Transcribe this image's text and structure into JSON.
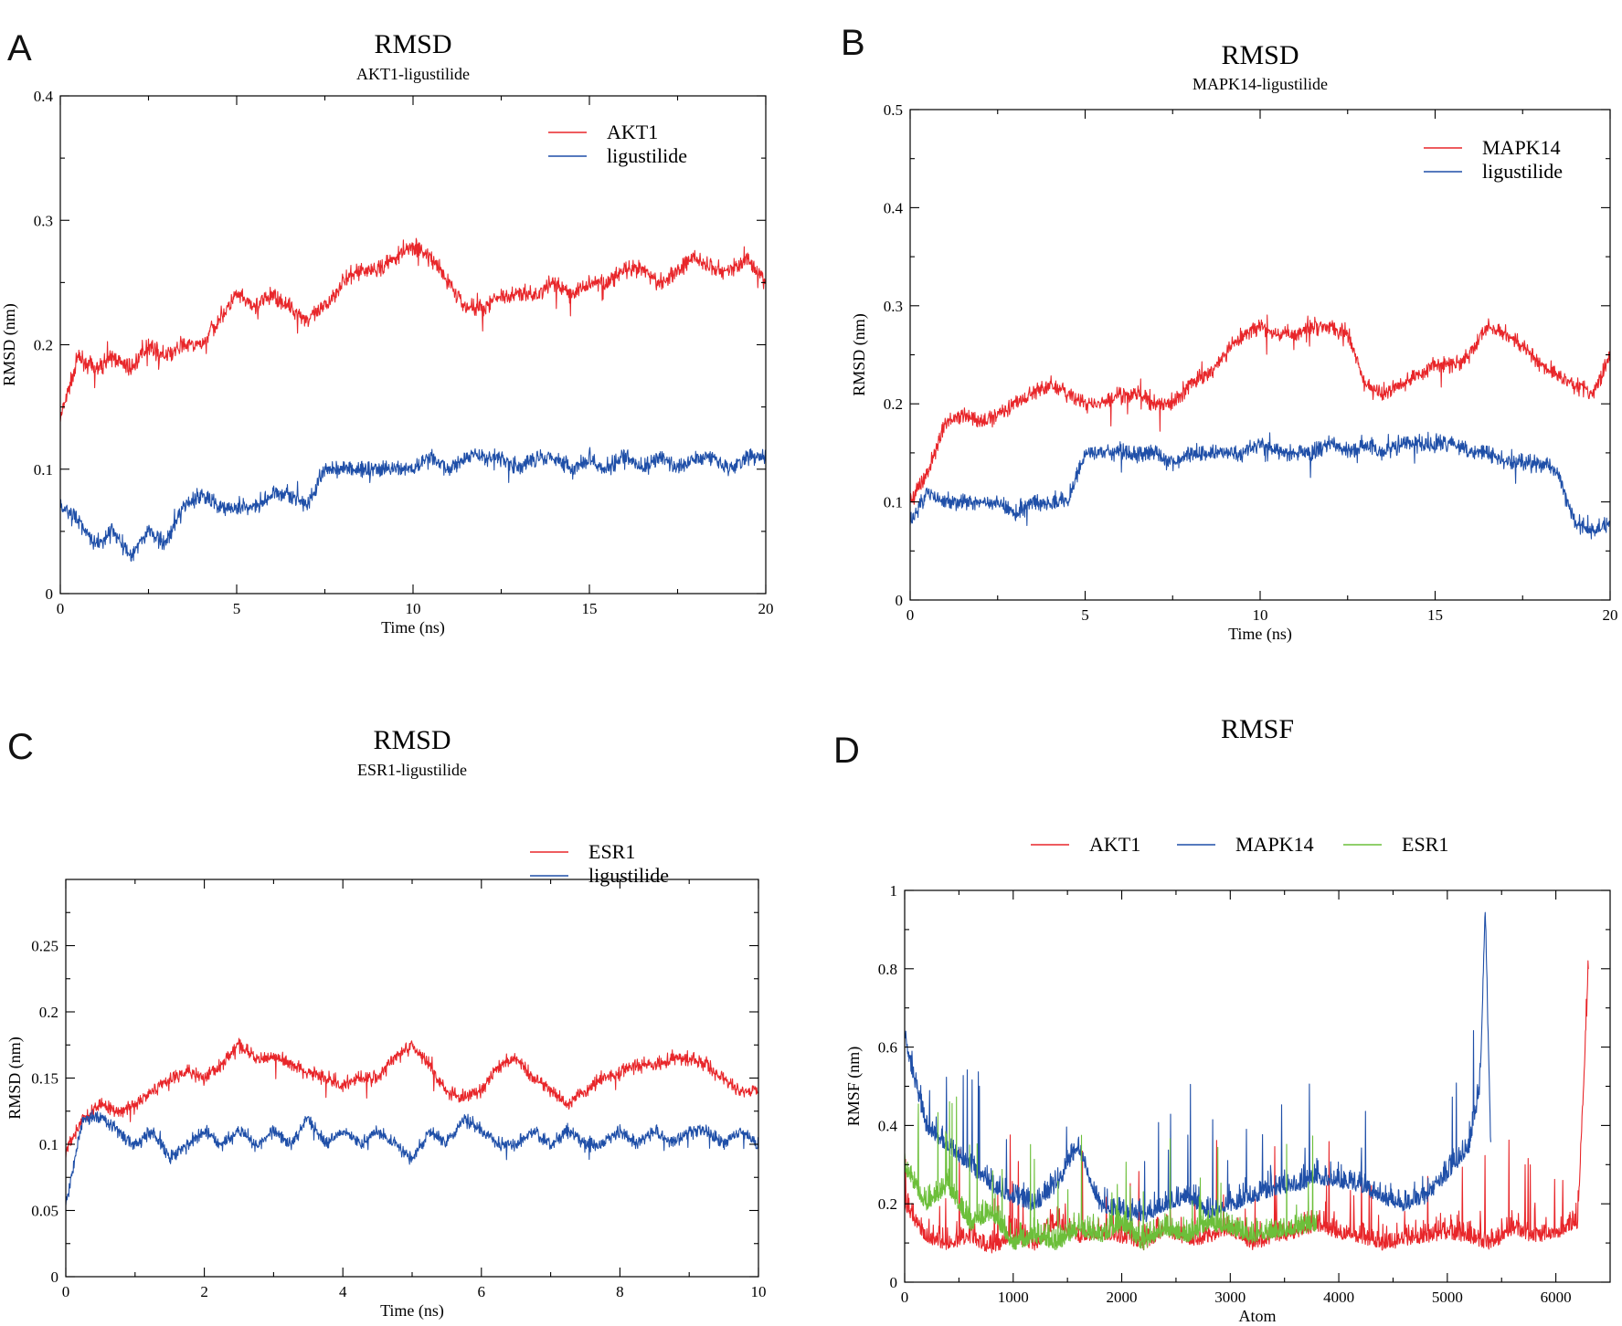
{
  "chart_data": [
    {
      "panel": "A",
      "type": "line",
      "title": "RMSD",
      "subtitle": "AKT1-ligustilide",
      "xlabel": "Time (ns)",
      "ylabel": "RMSD (nm)",
      "xlim": [
        0,
        20
      ],
      "ylim": [
        0,
        0.4
      ],
      "xticks": [
        0,
        5,
        10,
        15,
        20
      ],
      "yticks": [
        0,
        0.1,
        0.2,
        0.3,
        0.4
      ],
      "x_tick_labels": [
        "0",
        "5",
        "10",
        "15",
        "20"
      ],
      "y_tick_labels": [
        "0",
        "0.1",
        "0.2",
        "0.3",
        "0.4"
      ],
      "grid": false,
      "legend_position": "top-right",
      "series": [
        {
          "name": "AKT1",
          "color": "#e8262a",
          "x": [
            0,
            0.5,
            1,
            1.5,
            2,
            2.5,
            3,
            3.5,
            4,
            4.5,
            5,
            5.5,
            6,
            6.5,
            7,
            7.5,
            8,
            8.5,
            9,
            9.5,
            10,
            10.5,
            11,
            11.5,
            12,
            12.5,
            13,
            13.5,
            14,
            14.5,
            15,
            15.5,
            16,
            16.5,
            17,
            17.5,
            18,
            18.5,
            19,
            19.5,
            20
          ],
          "y": [
            0.14,
            0.19,
            0.18,
            0.19,
            0.18,
            0.2,
            0.19,
            0.2,
            0.2,
            0.22,
            0.24,
            0.23,
            0.24,
            0.23,
            0.22,
            0.23,
            0.25,
            0.26,
            0.26,
            0.27,
            0.28,
            0.27,
            0.25,
            0.23,
            0.23,
            0.24,
            0.24,
            0.24,
            0.25,
            0.24,
            0.25,
            0.25,
            0.26,
            0.26,
            0.25,
            0.26,
            0.27,
            0.26,
            0.26,
            0.27,
            0.25
          ]
        },
        {
          "name": "ligustilide",
          "color": "#1f4fa8",
          "x": [
            0,
            0.5,
            1,
            1.5,
            2,
            2.5,
            3,
            3.5,
            4,
            4.5,
            5,
            5.5,
            6,
            6.5,
            7,
            7.5,
            8,
            8.5,
            9,
            9.5,
            10,
            10.5,
            11,
            11.5,
            12,
            12.5,
            13,
            13.5,
            14,
            14.5,
            15,
            15.5,
            16,
            16.5,
            17,
            17.5,
            18,
            18.5,
            19,
            19.5,
            20
          ],
          "y": [
            0.07,
            0.06,
            0.04,
            0.05,
            0.03,
            0.05,
            0.04,
            0.07,
            0.08,
            0.07,
            0.07,
            0.07,
            0.08,
            0.08,
            0.07,
            0.1,
            0.1,
            0.1,
            0.1,
            0.1,
            0.1,
            0.11,
            0.1,
            0.11,
            0.11,
            0.11,
            0.1,
            0.11,
            0.11,
            0.1,
            0.11,
            0.1,
            0.11,
            0.1,
            0.11,
            0.1,
            0.11,
            0.11,
            0.1,
            0.11,
            0.11
          ]
        }
      ]
    },
    {
      "panel": "B",
      "type": "line",
      "title": "RMSD",
      "subtitle": "MAPK14-ligustilide",
      "xlabel": "Time (ns)",
      "ylabel": "RMSD (nm)",
      "xlim": [
        0,
        20
      ],
      "ylim": [
        0,
        0.5
      ],
      "xticks": [
        0,
        5,
        10,
        15,
        20
      ],
      "yticks": [
        0,
        0.1,
        0.2,
        0.3,
        0.4,
        0.5
      ],
      "x_tick_labels": [
        "0",
        "5",
        "10",
        "15",
        "20"
      ],
      "y_tick_labels": [
        "0",
        "0.1",
        "0.2",
        "0.3",
        "0.4",
        "0.5"
      ],
      "grid": false,
      "legend_position": "top-right",
      "series": [
        {
          "name": "MAPK14",
          "color": "#e8262a",
          "x": [
            0,
            0.5,
            1,
            1.5,
            2,
            2.5,
            3,
            3.5,
            4,
            4.5,
            5,
            5.5,
            6,
            6.5,
            7,
            7.5,
            8,
            8.5,
            9,
            9.5,
            10,
            10.5,
            11,
            11.5,
            12,
            12.5,
            13,
            13.5,
            14,
            14.5,
            15,
            15.5,
            16,
            16.5,
            17,
            17.5,
            18,
            18.5,
            19,
            19.5,
            20
          ],
          "y": [
            0.1,
            0.13,
            0.18,
            0.19,
            0.18,
            0.19,
            0.2,
            0.21,
            0.22,
            0.21,
            0.2,
            0.2,
            0.21,
            0.21,
            0.2,
            0.2,
            0.22,
            0.23,
            0.25,
            0.27,
            0.28,
            0.27,
            0.27,
            0.28,
            0.28,
            0.27,
            0.22,
            0.21,
            0.22,
            0.23,
            0.24,
            0.24,
            0.25,
            0.28,
            0.27,
            0.26,
            0.24,
            0.23,
            0.22,
            0.21,
            0.25
          ]
        },
        {
          "name": "ligustilide",
          "color": "#1f4fa8",
          "x": [
            0,
            0.5,
            1,
            1.5,
            2,
            2.5,
            3,
            3.5,
            4,
            4.5,
            5,
            5.5,
            6,
            6.5,
            7,
            7.5,
            8,
            8.5,
            9,
            9.5,
            10,
            10.5,
            11,
            11.5,
            12,
            12.5,
            13,
            13.5,
            14,
            14.5,
            15,
            15.5,
            16,
            16.5,
            17,
            17.5,
            18,
            18.5,
            19,
            19.5,
            20
          ],
          "y": [
            0.08,
            0.11,
            0.1,
            0.1,
            0.1,
            0.1,
            0.09,
            0.1,
            0.1,
            0.1,
            0.15,
            0.15,
            0.15,
            0.15,
            0.15,
            0.14,
            0.15,
            0.15,
            0.15,
            0.15,
            0.16,
            0.15,
            0.15,
            0.15,
            0.16,
            0.15,
            0.16,
            0.15,
            0.16,
            0.16,
            0.16,
            0.16,
            0.15,
            0.15,
            0.14,
            0.14,
            0.14,
            0.13,
            0.08,
            0.07,
            0.08
          ]
        }
      ]
    },
    {
      "panel": "C",
      "type": "line",
      "title": "RMSD",
      "subtitle": "ESR1-ligustilide",
      "xlabel": "Time (ns)",
      "ylabel": "RMSD (nm)",
      "xlim": [
        0,
        10
      ],
      "ylim": [
        0,
        0.3
      ],
      "xticks": [
        0,
        2,
        4,
        6,
        8,
        10
      ],
      "yticks": [
        0,
        0.05,
        0.1,
        0.15,
        0.2,
        0.25
      ],
      "x_tick_labels": [
        "0",
        "2",
        "4",
        "6",
        "8",
        "10"
      ],
      "y_tick_labels": [
        "0",
        "0.05",
        "0.1",
        "0.15",
        "0.2",
        "0.25"
      ],
      "grid": false,
      "legend_position": "top-right",
      "series": [
        {
          "name": "ESR1",
          "color": "#e8262a",
          "x": [
            0,
            0.25,
            0.5,
            0.75,
            1,
            1.25,
            1.5,
            1.75,
            2,
            2.25,
            2.5,
            2.75,
            3,
            3.25,
            3.5,
            3.75,
            4,
            4.25,
            4.5,
            4.75,
            5,
            5.25,
            5.5,
            5.75,
            6,
            6.25,
            6.5,
            6.75,
            7,
            7.25,
            7.5,
            7.75,
            8,
            8.25,
            8.5,
            8.75,
            9,
            9.25,
            9.5,
            9.75,
            10
          ],
          "y": [
            0.095,
            0.12,
            0.13,
            0.125,
            0.13,
            0.14,
            0.15,
            0.155,
            0.15,
            0.16,
            0.175,
            0.165,
            0.165,
            0.16,
            0.155,
            0.15,
            0.145,
            0.15,
            0.15,
            0.165,
            0.175,
            0.16,
            0.14,
            0.135,
            0.14,
            0.16,
            0.165,
            0.15,
            0.14,
            0.13,
            0.14,
            0.15,
            0.155,
            0.16,
            0.16,
            0.165,
            0.165,
            0.16,
            0.15,
            0.14,
            0.14
          ]
        },
        {
          "name": "ligustilide",
          "color": "#1f4fa8",
          "x": [
            0,
            0.25,
            0.5,
            0.75,
            1,
            1.25,
            1.5,
            1.75,
            2,
            2.25,
            2.5,
            2.75,
            3,
            3.25,
            3.5,
            3.75,
            4,
            4.25,
            4.5,
            4.75,
            5,
            5.25,
            5.5,
            5.75,
            6,
            6.25,
            6.5,
            6.75,
            7,
            7.25,
            7.5,
            7.75,
            8,
            8.25,
            8.5,
            8.75,
            9,
            9.25,
            9.5,
            9.75,
            10
          ],
          "y": [
            0.055,
            0.12,
            0.12,
            0.11,
            0.1,
            0.11,
            0.09,
            0.1,
            0.11,
            0.1,
            0.11,
            0.1,
            0.11,
            0.1,
            0.12,
            0.1,
            0.11,
            0.1,
            0.11,
            0.1,
            0.09,
            0.11,
            0.1,
            0.12,
            0.11,
            0.1,
            0.1,
            0.11,
            0.1,
            0.11,
            0.1,
            0.1,
            0.11,
            0.1,
            0.11,
            0.1,
            0.11,
            0.11,
            0.1,
            0.11,
            0.1
          ]
        }
      ]
    },
    {
      "panel": "D",
      "type": "line",
      "title": "RMSF",
      "subtitle": "",
      "xlabel": "Atom",
      "ylabel": "RMSF (nm)",
      "xlim": [
        0,
        6500
      ],
      "ylim": [
        0,
        1
      ],
      "xticks": [
        0,
        1000,
        2000,
        3000,
        4000,
        5000,
        6000
      ],
      "yticks": [
        0,
        0.2,
        0.4,
        0.6,
        0.8,
        1
      ],
      "x_tick_labels": [
        "0",
        "1000",
        "2000",
        "3000",
        "4000",
        "5000",
        "6000"
      ],
      "y_tick_labels": [
        "0",
        "0.2",
        "0.4",
        "0.6",
        "0.8",
        "1"
      ],
      "grid": false,
      "legend_position": "top",
      "series": [
        {
          "name": "AKT1",
          "color": "#e8262a",
          "x": [
            0,
            200,
            400,
            600,
            800,
            1000,
            1200,
            1400,
            1600,
            1800,
            2000,
            2200,
            2400,
            2600,
            2800,
            3000,
            3200,
            3400,
            3600,
            3800,
            4000,
            4200,
            4400,
            4600,
            4800,
            5000,
            5200,
            5400,
            5600,
            5800,
            6000,
            6200,
            6300
          ],
          "y": [
            0.2,
            0.12,
            0.1,
            0.12,
            0.09,
            0.12,
            0.1,
            0.16,
            0.12,
            0.13,
            0.12,
            0.1,
            0.14,
            0.11,
            0.12,
            0.14,
            0.1,
            0.12,
            0.13,
            0.15,
            0.13,
            0.12,
            0.1,
            0.11,
            0.12,
            0.13,
            0.12,
            0.1,
            0.14,
            0.12,
            0.13,
            0.15,
            0.8
          ]
        },
        {
          "name": "MAPK14",
          "color": "#1f4fa8",
          "x": [
            0,
            200,
            400,
            600,
            800,
            1000,
            1200,
            1400,
            1600,
            1800,
            2000,
            2200,
            2400,
            2600,
            2800,
            3000,
            3200,
            3400,
            3600,
            3800,
            4000,
            4200,
            4400,
            4600,
            4800,
            5000,
            5200,
            5300,
            5350,
            5400
          ],
          "y": [
            0.62,
            0.4,
            0.35,
            0.3,
            0.25,
            0.22,
            0.2,
            0.25,
            0.35,
            0.2,
            0.18,
            0.17,
            0.2,
            0.22,
            0.18,
            0.2,
            0.22,
            0.24,
            0.25,
            0.27,
            0.26,
            0.25,
            0.22,
            0.2,
            0.22,
            0.28,
            0.35,
            0.5,
            0.96,
            0.35
          ]
        },
        {
          "name": "ESR1",
          "color": "#6cbf3a",
          "x": [
            0,
            200,
            400,
            600,
            800,
            1000,
            1200,
            1400,
            1600,
            1800,
            2000,
            2200,
            2400,
            2600,
            2800,
            3000,
            3200,
            3400,
            3600,
            3800
          ],
          "y": [
            0.3,
            0.2,
            0.25,
            0.15,
            0.18,
            0.1,
            0.12,
            0.1,
            0.14,
            0.12,
            0.15,
            0.1,
            0.14,
            0.12,
            0.15,
            0.14,
            0.12,
            0.13,
            0.14,
            0.15
          ]
        }
      ]
    }
  ]
}
